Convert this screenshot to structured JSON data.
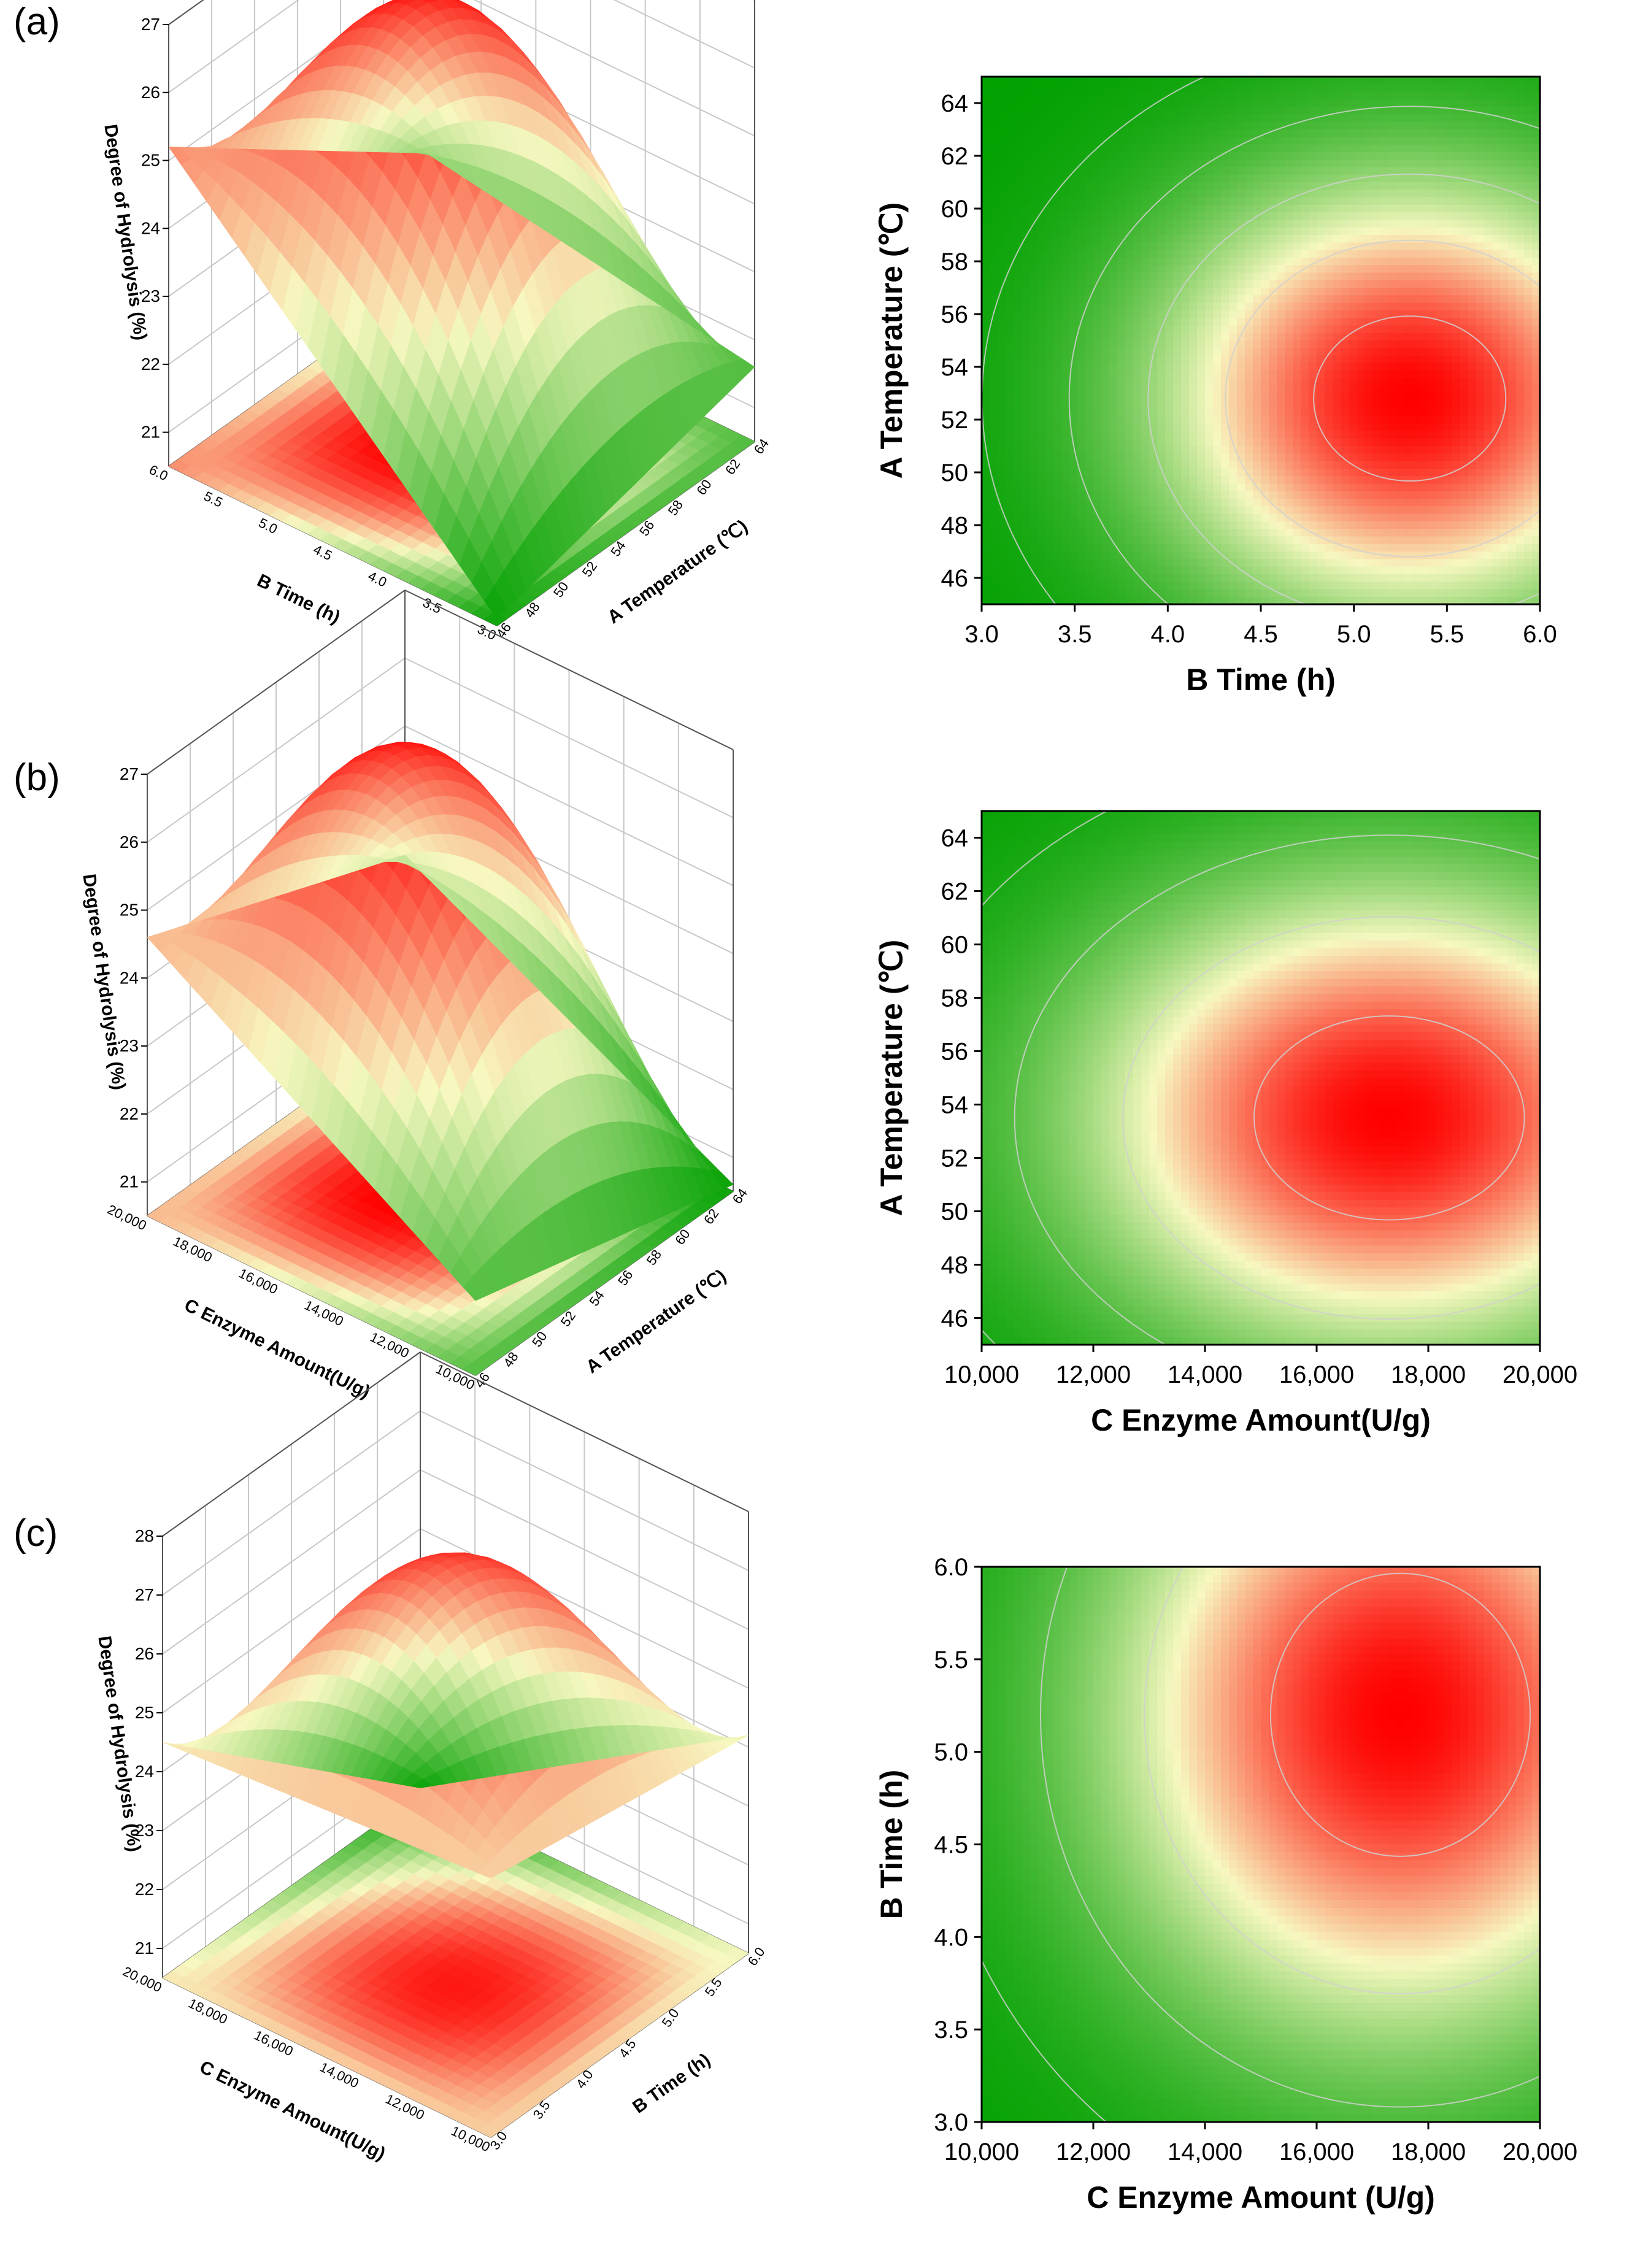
{
  "panels": [
    {
      "label": "(a)",
      "chart_data": [
        {
          "type": "surface",
          "zlabel": "Degree of Hydrolysis (%)",
          "xlabel": "B Time (h)",
          "ylabel": "A Temperature (℃)",
          "x_ticks": [
            "6.0",
            "5.5",
            "5.0",
            "4.5",
            "4.0",
            "3.5",
            "3.0"
          ],
          "y_ticks": [
            "64",
            "62",
            "60",
            "58",
            "56",
            "54",
            "52",
            "50",
            "48",
            "46"
          ],
          "z_ticks": [
            "27",
            "26",
            "25",
            "24",
            "23",
            "22",
            "21"
          ],
          "zlim": [
            20.5,
            27
          ],
          "peak_z": 26.9,
          "corner_z": [
            25.2,
            20.6,
            21.6,
            22.4
          ],
          "colormap": [
            "#00a000",
            "#f7f8c0",
            "#ff0000"
          ]
        },
        {
          "type": "heatmap",
          "xlabel": "B Time (h)",
          "ylabel": "A Temperature (℃)",
          "x_ticks": [
            "3.0",
            "3.5",
            "4.0",
            "4.5",
            "5.0",
            "5.5",
            "6.0"
          ],
          "y_ticks": [
            "46",
            "48",
            "50",
            "52",
            "54",
            "56",
            "58",
            "60",
            "62",
            "64"
          ],
          "xlim": [
            3.0,
            6.0
          ],
          "ylim": [
            45,
            65
          ],
          "optimum": {
            "x": 5.3,
            "y": 52.8
          },
          "spread": {
            "x": 1.9,
            "y": 11.5
          },
          "contours": [
            0.04,
            0.13,
            0.3,
            0.55,
            0.85
          ],
          "colormap": [
            "#00a000",
            "#f7f8c0",
            "#ff0000"
          ]
        }
      ]
    },
    {
      "label": "(b)",
      "chart_data": [
        {
          "type": "surface",
          "zlabel": "Degree of Hydrolysis (%)",
          "xlabel": "C Enzyme Amount(U/g)",
          "ylabel": "A Temperature (℃)",
          "x_ticks": [
            "20,000",
            "18,000",
            "16,000",
            "14,000",
            "12,000",
            "10,000"
          ],
          "y_ticks": [
            "64",
            "62",
            "60",
            "58",
            "56",
            "54",
            "52",
            "50",
            "48",
            "46"
          ],
          "z_ticks": [
            "27",
            "26",
            "25",
            "24",
            "23",
            "22",
            "21"
          ],
          "zlim": [
            20.5,
            27
          ],
          "peak_z": 26.9,
          "corner_z": [
            24.6,
            21.6,
            20.6,
            23.1
          ],
          "colormap": [
            "#00a000",
            "#f7f8c0",
            "#ff0000"
          ]
        },
        {
          "type": "heatmap",
          "xlabel": "C Enzyme Amount(U/g)",
          "ylabel": "A Temperature (℃)",
          "x_ticks": [
            "10,000",
            "12,000",
            "14,000",
            "16,000",
            "18,000",
            "20,000"
          ],
          "y_ticks": [
            "46",
            "48",
            "50",
            "52",
            "54",
            "56",
            "58",
            "60",
            "62",
            "64"
          ],
          "xlim": [
            10000,
            20000
          ],
          "ylim": [
            45,
            65
          ],
          "optimum": {
            "x": 17300,
            "y": 53.5
          },
          "spread": {
            "x": 7600,
            "y": 12.0
          },
          "contours": [
            0.05,
            0.18,
            0.42,
            0.8
          ],
          "colormap": [
            "#00a000",
            "#f7f8c0",
            "#ff0000"
          ]
        }
      ]
    },
    {
      "label": "(c)",
      "chart_data": [
        {
          "type": "surface",
          "zlabel": "Degree of Hydrolysis (%)",
          "xlabel": "C Enzyme Amount(U/g)",
          "ylabel": "B Time (h)",
          "x_ticks": [
            "20,000",
            "18,000",
            "16,000",
            "14,000",
            "12,000",
            "10,000"
          ],
          "y_ticks": [
            "6.0",
            "5.5",
            "5.0",
            "4.5",
            "4.0",
            "3.5",
            "3.0"
          ],
          "z_ticks": [
            "28",
            "27",
            "26",
            "25",
            "24",
            "23",
            "22",
            "21"
          ],
          "zlim": [
            20.5,
            28
          ],
          "peak_z": 27.5,
          "corner_z": [
            24.5,
            24.9,
            24.2,
            20.6
          ],
          "colormap": [
            "#00a000",
            "#f7f8c0",
            "#ff0000"
          ]
        },
        {
          "type": "heatmap",
          "xlabel": "C Enzyme Amount (U/g)",
          "ylabel": "B Time (h)",
          "x_ticks": [
            "10,000",
            "12,000",
            "14,000",
            "16,000",
            "18,000",
            "20,000"
          ],
          "y_ticks": [
            "3.0",
            "3.5",
            "4.0",
            "4.5",
            "5.0",
            "5.5",
            "6.0"
          ],
          "xlim": [
            10000,
            20000
          ],
          "ylim": [
            3.0,
            6.0
          ],
          "optimum": {
            "x": 17500,
            "y": 5.2
          },
          "spread": {
            "x": 7300,
            "y": 2.4
          },
          "contours": [
            0.05,
            0.18,
            0.42,
            0.8
          ],
          "colormap": [
            "#00a000",
            "#f7f8c0",
            "#ff0000"
          ]
        }
      ]
    }
  ]
}
